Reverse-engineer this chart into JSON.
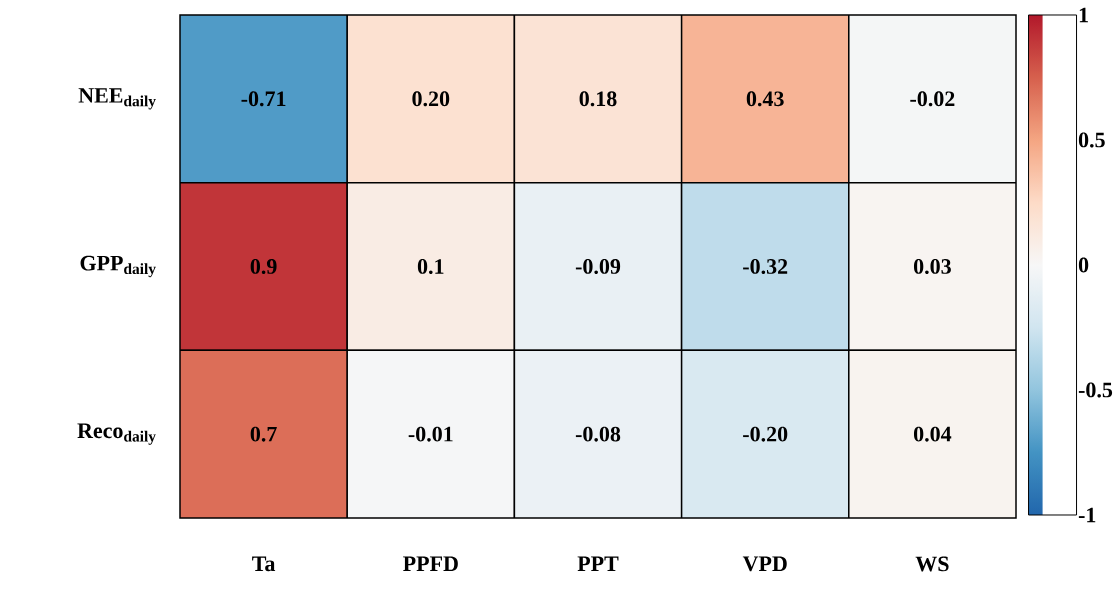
{
  "chart_data": {
    "type": "heatmap",
    "categories": [
      "Ta",
      "PPFD",
      "PPT",
      "VPD",
      "WS"
    ],
    "y_categories": [
      "NEE$_{daily}$",
      "GPP$_{daily}$",
      "Reco$_{daily}$"
    ],
    "cells": [
      [
        -0.71,
        0.2,
        0.18,
        0.43,
        -0.02
      ],
      [
        0.9,
        0.1,
        -0.09,
        -0.32,
        0.03
      ],
      [
        0.7,
        -0.01,
        -0.08,
        -0.2,
        0.04
      ]
    ],
    "cell_labels": [
      [
        "-0.71",
        "0.20",
        "0.18",
        "0.43",
        "-0.02"
      ],
      [
        "0.9",
        "0.1",
        "-0.09",
        "-0.32",
        "0.03"
      ],
      [
        "0.7",
        "-0.01",
        "-0.08",
        "-0.20",
        "0.04"
      ]
    ],
    "clim": [
      -1,
      1
    ],
    "cticks": [
      -1,
      -0.5,
      0,
      0.5,
      1
    ]
  }
}
